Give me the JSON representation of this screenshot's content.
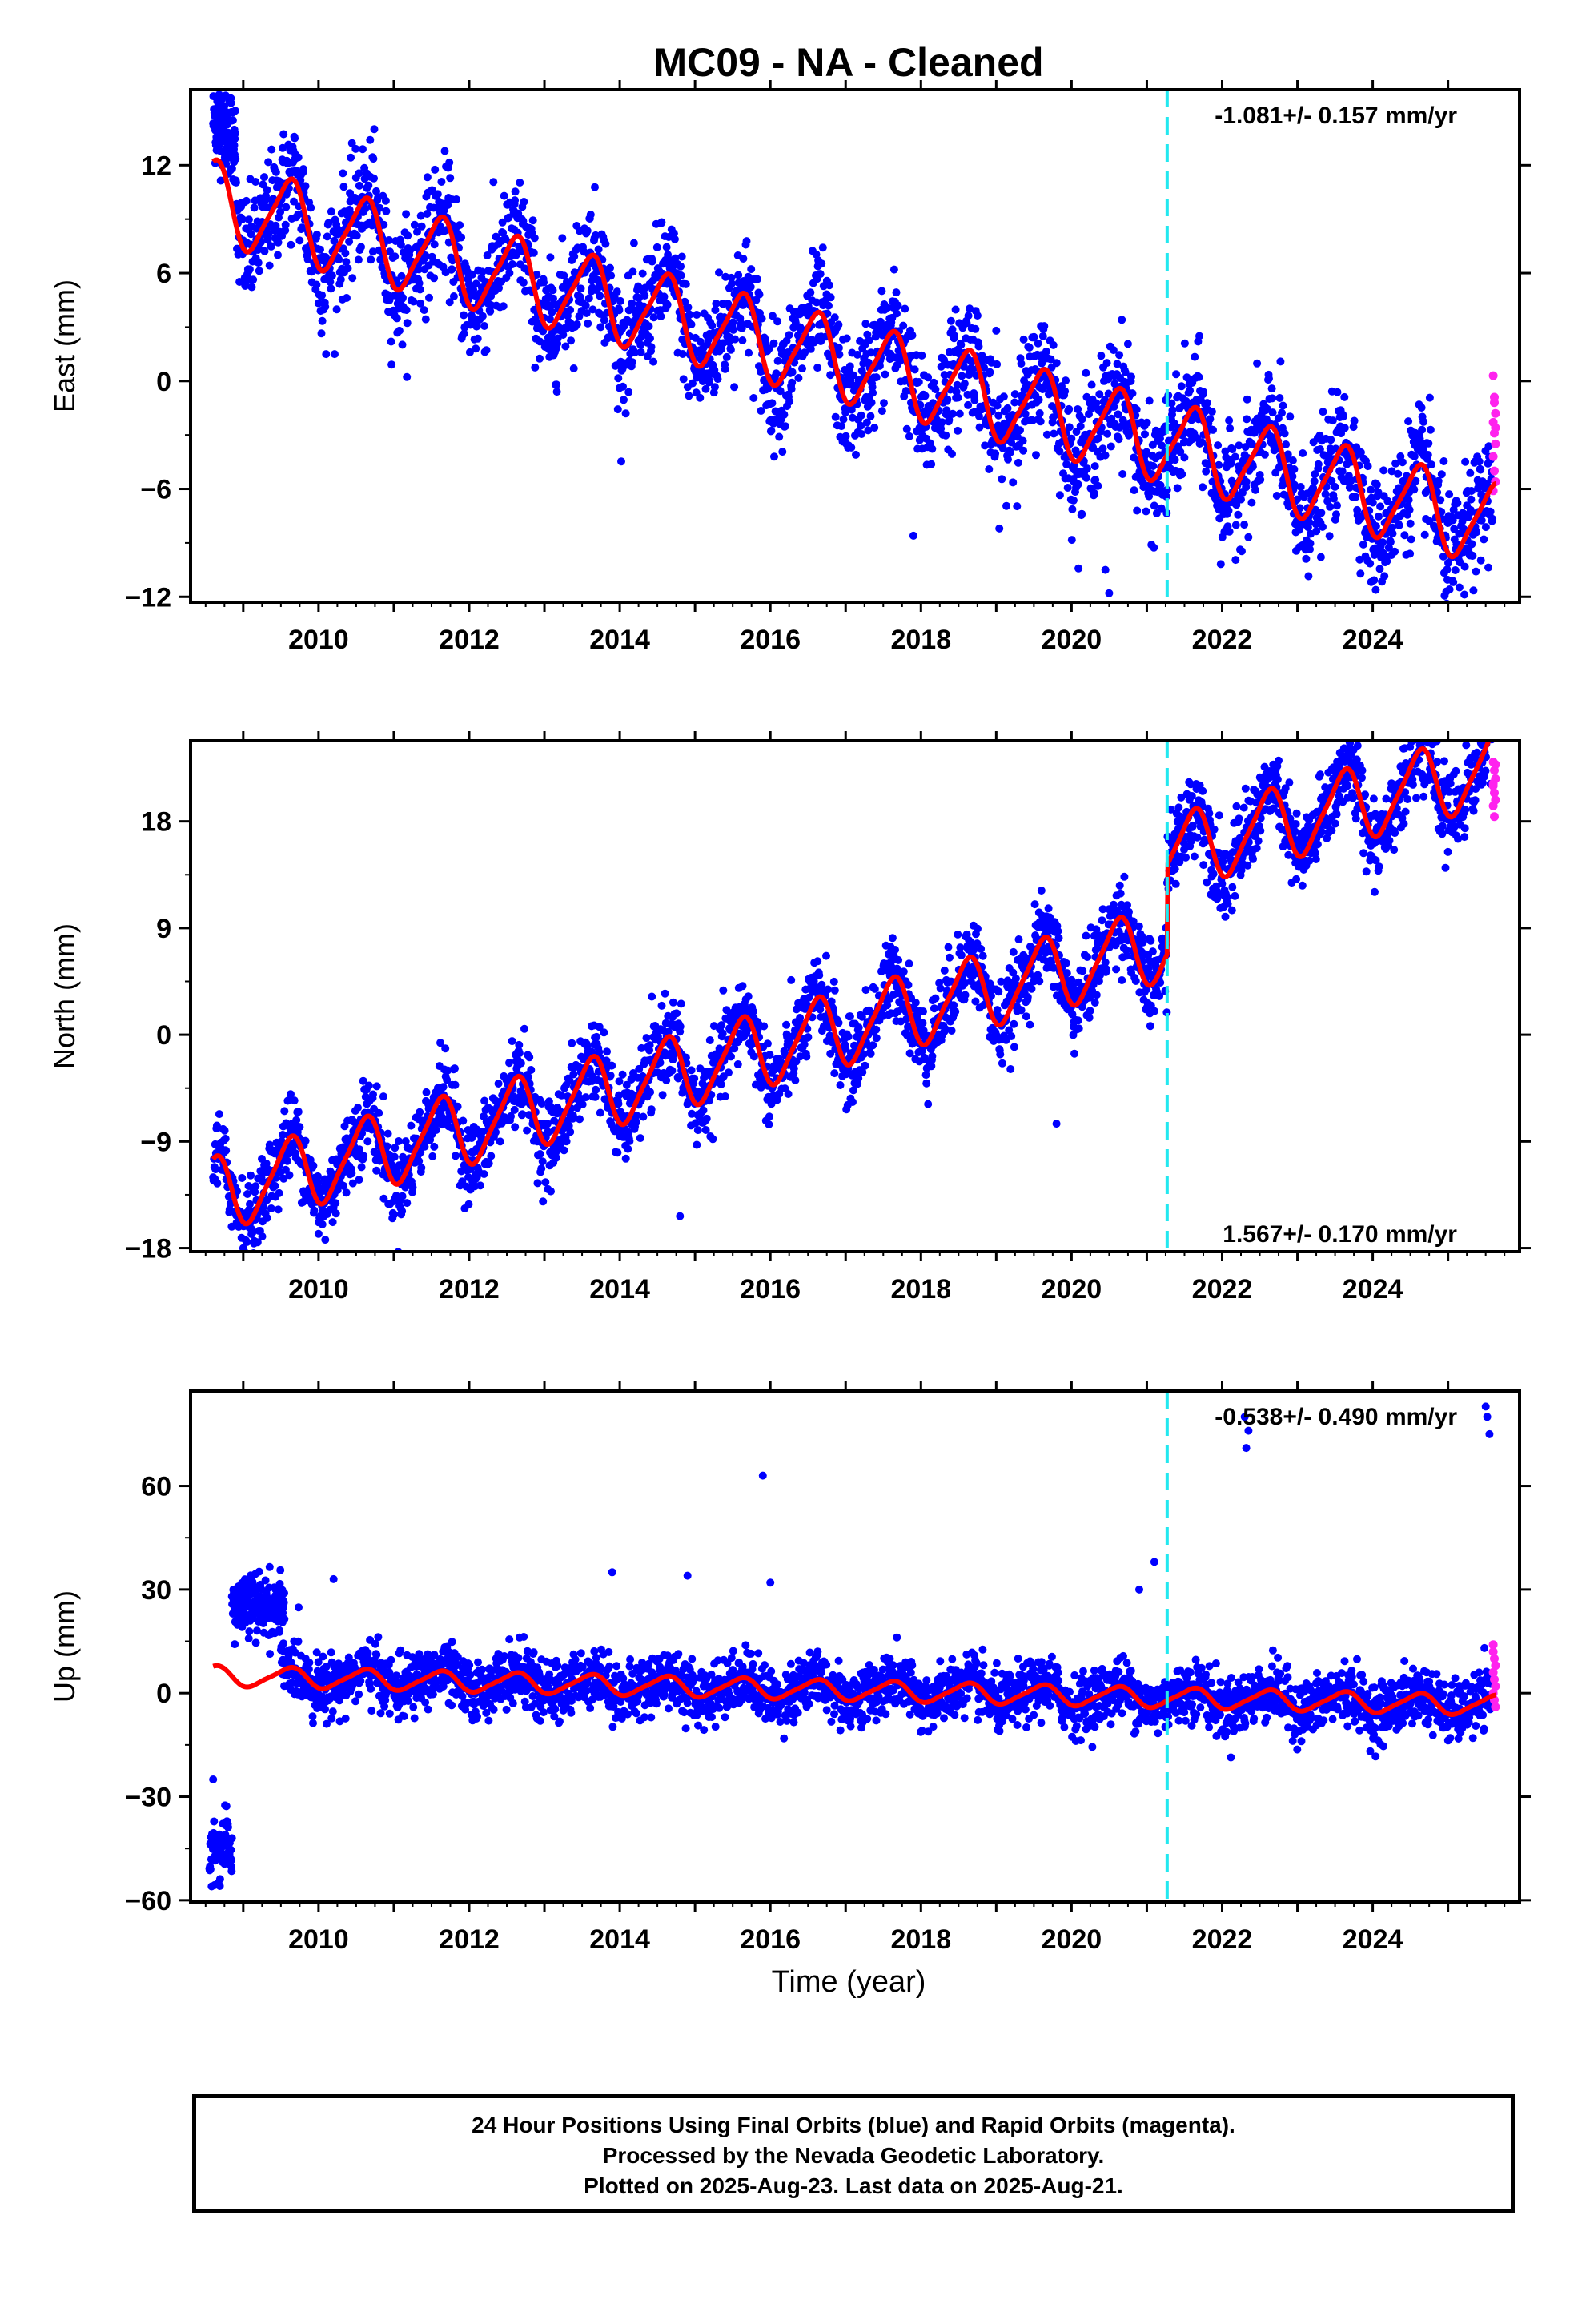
{
  "title": "MC09  - NA - Cleaned",
  "xlabel": "Time (year)",
  "colors": {
    "final": "#0000ff",
    "rapid": "#ff22ee",
    "model": "#ff0000",
    "event": "#22e8f0"
  },
  "footer": {
    "line1": "24 Hour Positions Using Final Orbits (blue) and Rapid Orbits (magenta).",
    "line2": "Processed by the Nevada Geodetic Laboratory.",
    "line3": "Plotted on 2025-Aug-23. Last data on 2025-Aug-21."
  },
  "chart_data": [
    {
      "type": "scatter",
      "name": "east",
      "ylabel": "East (mm)",
      "rate_label": "-1.081+/- 0.157 mm/yr",
      "rate_position": "top-right",
      "xlim": [
        2008.3,
        2025.95
      ],
      "ylim": [
        -12.3,
        16.2
      ],
      "yticks": [
        -12,
        -6,
        0,
        6,
        12
      ],
      "xticks": [
        2010,
        2012,
        2014,
        2016,
        2018,
        2020,
        2022,
        2024
      ],
      "event_line_x": 2021.27,
      "start": 2008.6,
      "end": 2025.64,
      "offsets": [],
      "trend": {
        "value_at_2008_6": 10.0,
        "value_at_2025_6": -8.0,
        "annual_amplitude": 2.2
      },
      "final_scatter_sd": 1.6,
      "initial_cluster": {
        "from": 2008.6,
        "to": 2008.9,
        "level": 13.5,
        "sd": 1.2
      },
      "rapid_points": [
        0.3,
        -0.9,
        -1.8,
        -2.3,
        -2.9,
        -3.5,
        -4.2,
        -5.0,
        -5.6,
        -6.1,
        -1.2,
        -2.6
      ],
      "outliers": [
        [
          2020.5,
          -11.8
        ],
        [
          2020.45,
          -10.5
        ],
        [
          2017.9,
          -8.6
        ],
        [
          2019.0,
          2.8
        ],
        [
          2010.1,
          1.5
        ]
      ],
      "grid": false
    },
    {
      "type": "scatter",
      "name": "north",
      "ylabel": "North (mm)",
      "rate_label": "1.567+/- 0.170 mm/yr",
      "rate_position": "bottom-right",
      "xlim": [
        2008.3,
        2025.95
      ],
      "ylim": [
        -18.3,
        24.8
      ],
      "yticks": [
        -18,
        -9,
        0,
        9,
        18
      ],
      "xticks": [
        2010,
        2012,
        2014,
        2016,
        2018,
        2020,
        2022,
        2024
      ],
      "event_line_x": 2021.27,
      "start": 2008.6,
      "end": 2025.64,
      "offsets": [
        [
          2021.27,
          7.5
        ]
      ],
      "trend": {
        "value_at_2008_6": -13.5,
        "value_at_2025_6": 15.0,
        "annual_amplitude": 3.0
      },
      "final_scatter_sd": 1.7,
      "rapid_points": [
        23.0,
        22.3,
        21.6,
        21.0,
        20.4,
        19.8,
        19.3,
        18.4,
        22.8,
        21.2
      ],
      "outliers": [
        [
          2014.8,
          -15.3
        ],
        [
          2019.8,
          -7.5
        ],
        [
          2009.0,
          -18.0
        ],
        [
          2010.0,
          -16.8
        ]
      ],
      "grid": false
    },
    {
      "type": "scatter",
      "name": "up",
      "ylabel": "Up (mm)",
      "rate_label": "-0.538+/- 0.490 mm/yr",
      "rate_position": "top-right",
      "xlim": [
        2008.3,
        2025.95
      ],
      "ylim": [
        -60.5,
        87.5
      ],
      "yticks": [
        -60,
        -30,
        0,
        30,
        60
      ],
      "xticks": [
        2010,
        2012,
        2014,
        2016,
        2018,
        2020,
        2022,
        2024
      ],
      "event_line_x": 2021.27,
      "start": 2009.5,
      "end": 2025.64,
      "offsets": [],
      "trend": {
        "value_at_2008_6": 5.0,
        "value_at_2025_6": -3.5,
        "annual_amplitude": 2.8
      },
      "final_scatter_sd": 4.2,
      "clusters": [
        {
          "from": 2008.55,
          "to": 2008.85,
          "level": -45,
          "sd": 4.5
        },
        {
          "from": 2008.85,
          "to": 2009.55,
          "level": 25,
          "sd": 4.5
        }
      ],
      "rapid_points": [
        14,
        10,
        8,
        6,
        4,
        2,
        0,
        -2,
        -4,
        12
      ],
      "outliers": [
        [
          2022.3,
          80
        ],
        [
          2022.35,
          76
        ],
        [
          2022.32,
          71
        ],
        [
          2025.5,
          83
        ],
        [
          2025.52,
          80
        ],
        [
          2025.55,
          75
        ],
        [
          2015.9,
          63
        ],
        [
          2016.0,
          32
        ],
        [
          2013.9,
          35
        ],
        [
          2014.9,
          34
        ],
        [
          2010.2,
          33
        ],
        [
          2020.9,
          30
        ],
        [
          2021.1,
          38
        ],
        [
          2008.6,
          -25
        ]
      ],
      "grid": false
    }
  ]
}
